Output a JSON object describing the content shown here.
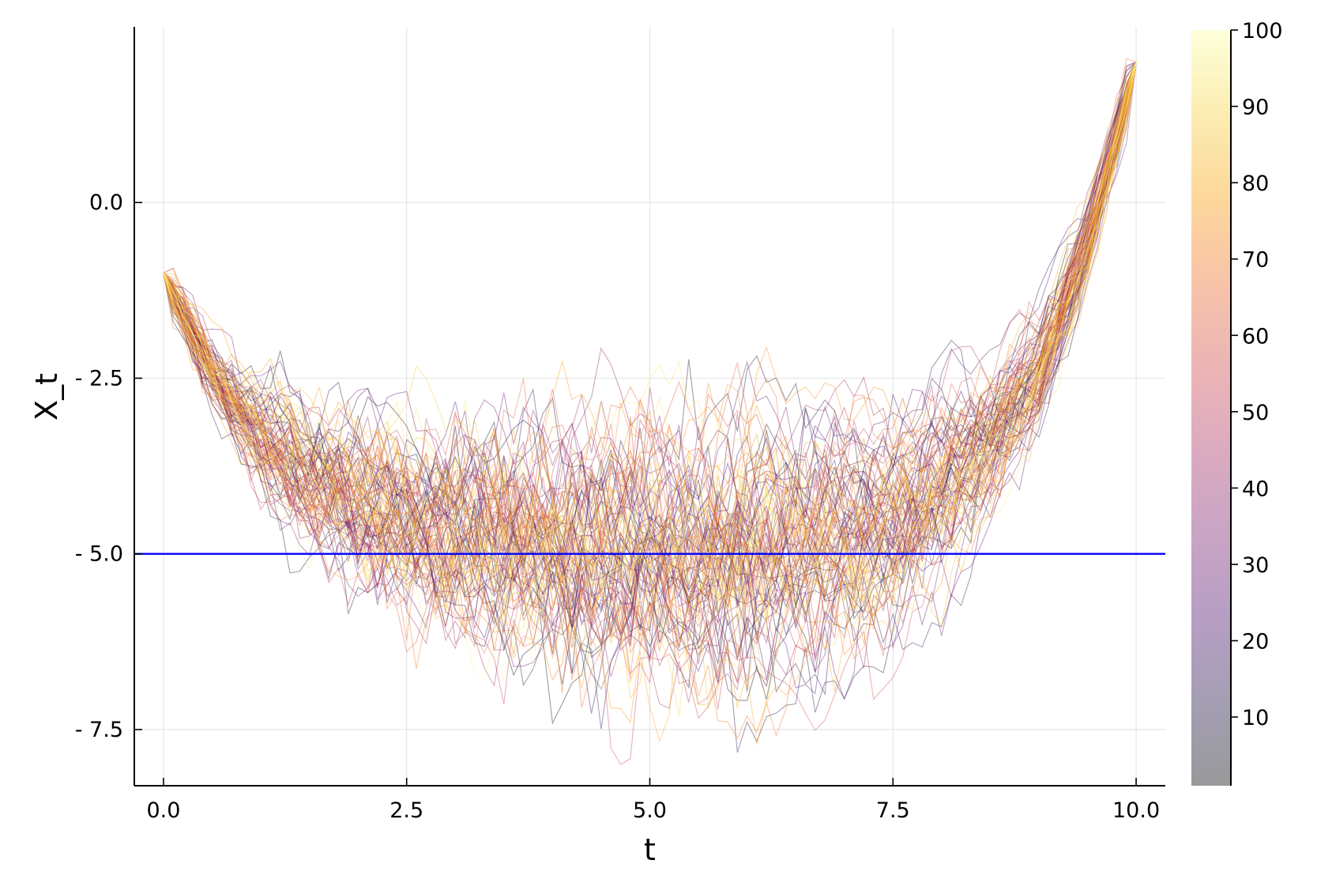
{
  "chart_data": {
    "type": "line",
    "title": "",
    "xlabel": "t",
    "ylabel": "X_t",
    "xlim": [
      -0.3,
      10.3
    ],
    "ylim": [
      -8.3,
      2.5
    ],
    "x_ticks": [
      {
        "value": 0.0,
        "label": "0.0"
      },
      {
        "value": 2.5,
        "label": "2.5"
      },
      {
        "value": 5.0,
        "label": "5.0"
      },
      {
        "value": 7.5,
        "label": "7.5"
      },
      {
        "value": 10.0,
        "label": "10.0"
      }
    ],
    "y_ticks": [
      {
        "value": 0.0,
        "label": "0.0"
      },
      {
        "value": -2.5,
        "label": "- 2.5"
      },
      {
        "value": -5.0,
        "label": "- 5.0"
      },
      {
        "value": -7.5,
        "label": "- 7.5"
      }
    ],
    "grid": true,
    "legend": "none",
    "paths": {
      "count": 100,
      "x_start": 0.0,
      "x_end": 10.0,
      "steps": 100,
      "start_value": -1.0,
      "end_value": 2.0,
      "mean_path": [
        [
          0.0,
          -1.0
        ],
        [
          0.5,
          -2.4
        ],
        [
          1.0,
          -3.3
        ],
        [
          1.5,
          -3.9
        ],
        [
          2.0,
          -4.3
        ],
        [
          2.5,
          -4.6
        ],
        [
          3.0,
          -4.8
        ],
        [
          4.0,
          -4.95
        ],
        [
          5.0,
          -5.0
        ],
        [
          6.0,
          -4.95
        ],
        [
          7.0,
          -4.8
        ],
        [
          7.5,
          -4.6
        ],
        [
          8.0,
          -4.2
        ],
        [
          8.5,
          -3.5
        ],
        [
          9.0,
          -2.4
        ],
        [
          9.5,
          -0.6
        ],
        [
          10.0,
          2.0
        ]
      ],
      "alpha": 0.4,
      "color_by": "path index 1–100"
    },
    "reference_line": {
      "y": -5.0,
      "color": "#0000ff"
    },
    "colorbar": {
      "min": 1,
      "max": 100,
      "ticks": [
        {
          "value": 10,
          "label": "10"
        },
        {
          "value": 20,
          "label": "20"
        },
        {
          "value": 30,
          "label": "30"
        },
        {
          "value": 40,
          "label": "40"
        },
        {
          "value": 50,
          "label": "50"
        },
        {
          "value": 60,
          "label": "60"
        },
        {
          "value": 70,
          "label": "70"
        },
        {
          "value": 80,
          "label": "80"
        },
        {
          "value": 90,
          "label": "90"
        },
        {
          "value": 100,
          "label": "100"
        }
      ],
      "colormap": [
        "#000004",
        "#1b0c41",
        "#4a0c6b",
        "#781c6d",
        "#a52c60",
        "#cf4446",
        "#ed6925",
        "#fb9b06",
        "#f7d13d",
        "#fcffa4"
      ],
      "alpha": 0.4
    }
  }
}
